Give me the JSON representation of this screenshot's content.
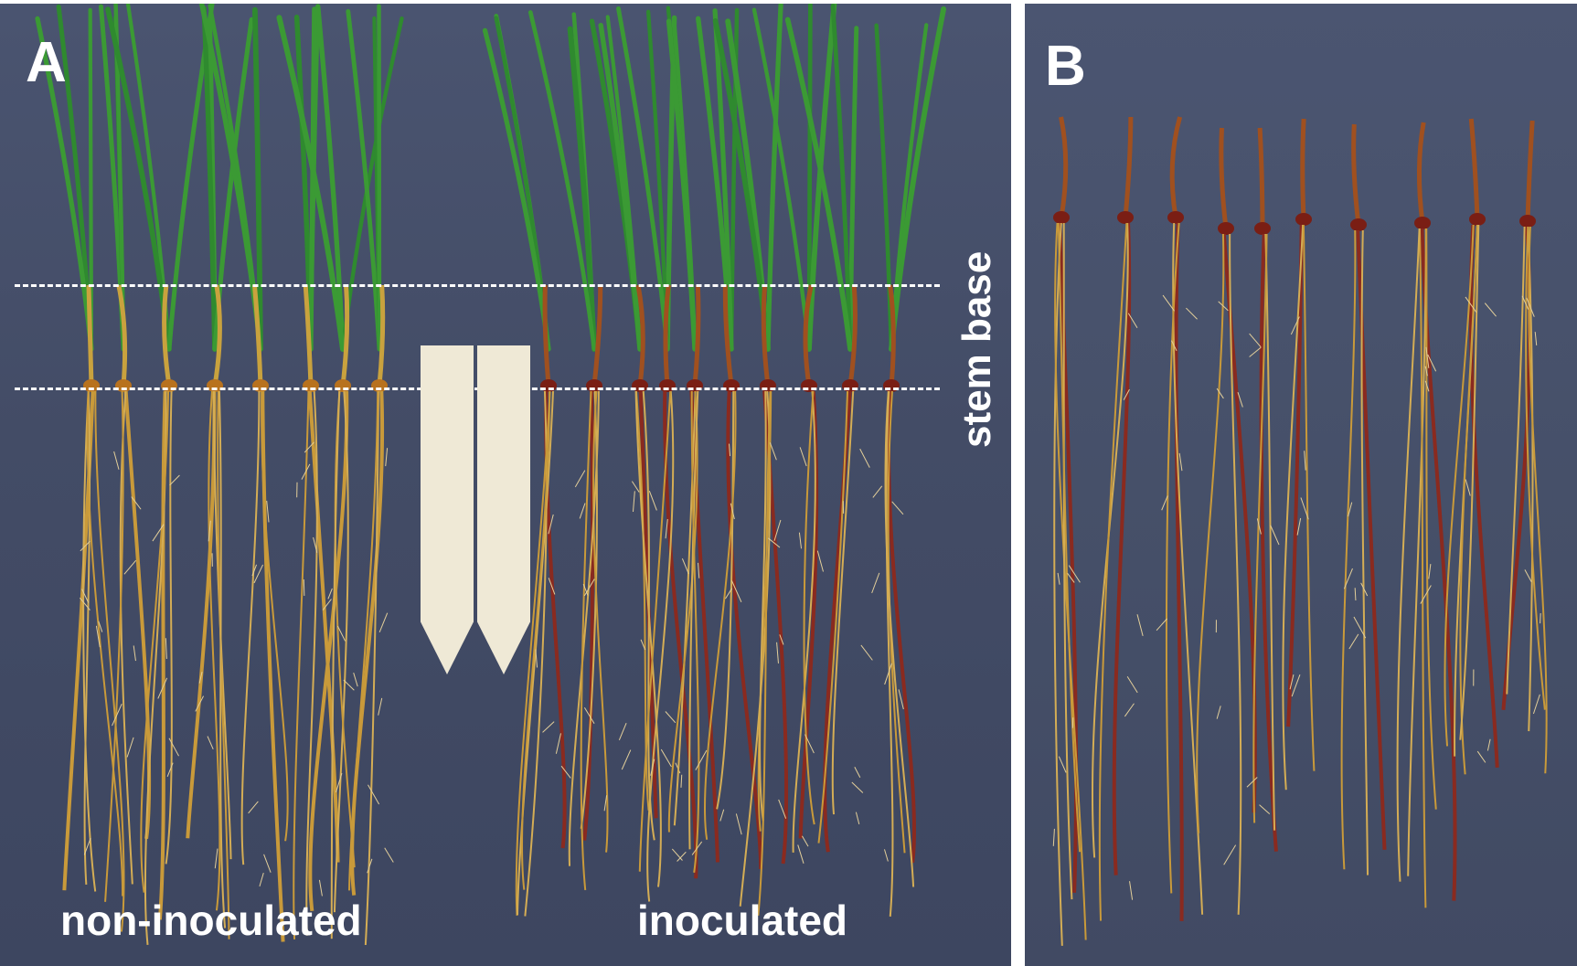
{
  "figure": {
    "panel_a": {
      "letter": "A",
      "stem_base_label": "stem base",
      "group_left_label": "non-inoculated",
      "group_right_label": "inoculated",
      "tags": [
        {
          "text": ""
        },
        {
          "text": ""
        }
      ]
    },
    "panel_b": {
      "letter": "B"
    }
  },
  "colors": {
    "background_board": "#434c66",
    "leaf_green": "#2f8a2f",
    "root_healthy": "#c99a3a",
    "root_infected": "#8a2a1f",
    "label_white": "#ffffff"
  }
}
